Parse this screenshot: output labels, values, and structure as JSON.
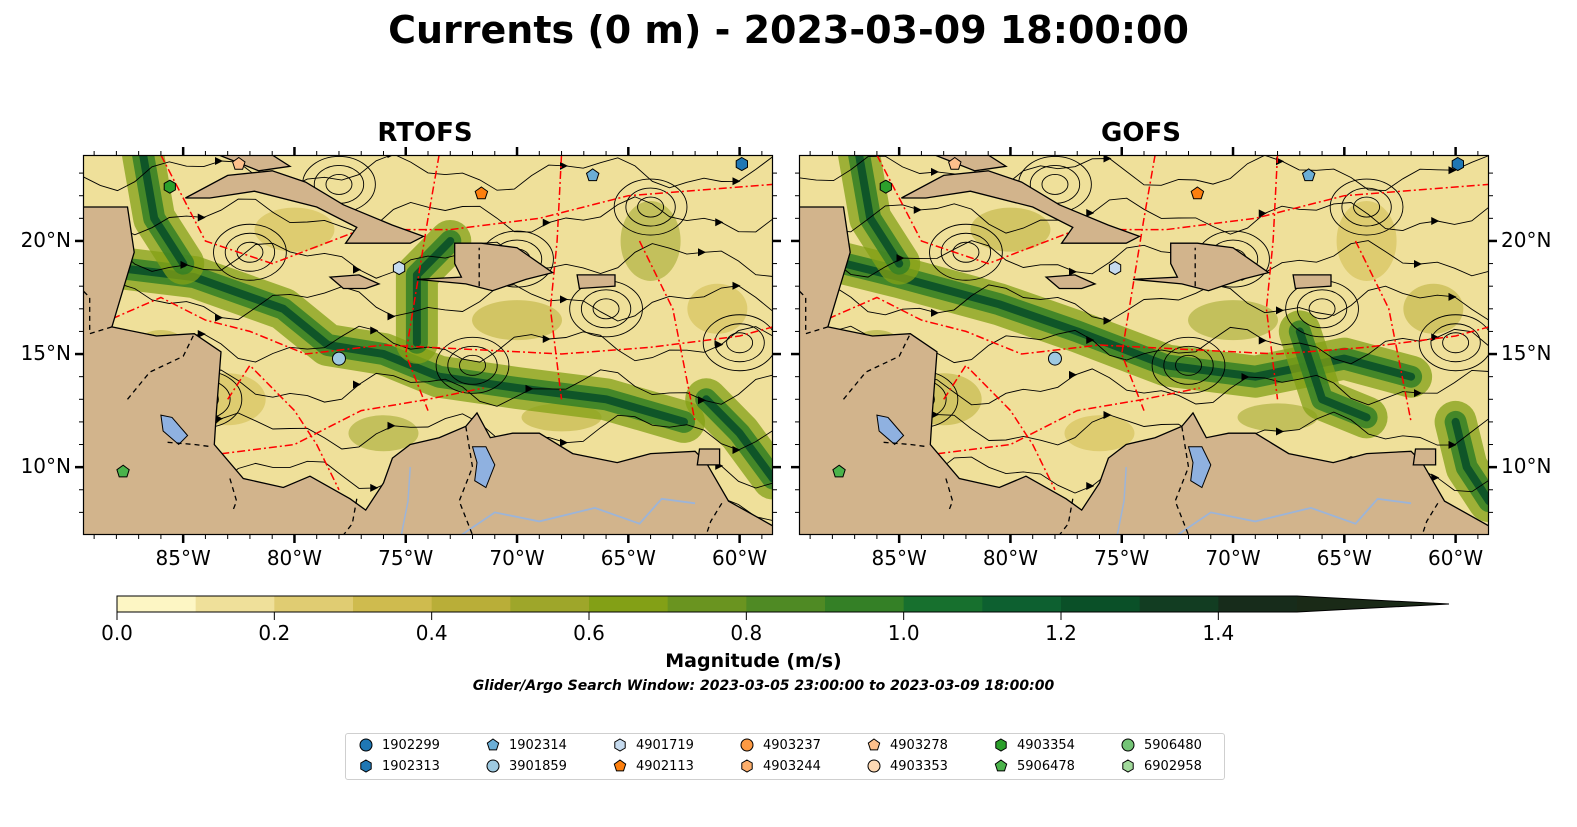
{
  "title": "Currents (0 m) - 2023-03-09 18:00:00",
  "panels": [
    {
      "title": "RTOFS",
      "x_ticks": [
        "85°W",
        "80°W",
        "75°W",
        "70°W",
        "65°W",
        "60°W"
      ],
      "y_ticks": [
        "20°N",
        "15°N",
        "10°N"
      ]
    },
    {
      "title": "GOFS",
      "x_ticks": [
        "85°W",
        "80°W",
        "75°W",
        "70°W",
        "65°W",
        "60°W"
      ],
      "y_ticks": [
        "20°N",
        "15°N",
        "10°N"
      ]
    }
  ],
  "map_extent": {
    "lon": [
      -89.5,
      -58.5
    ],
    "lat": [
      7.0,
      23.8
    ]
  },
  "colorbar": {
    "label": "Magnitude (m/s)",
    "ticks": [
      "0.0",
      "0.2",
      "0.4",
      "0.6",
      "0.8",
      "1.0",
      "1.2",
      "1.4"
    ],
    "range": [
      0,
      1.5
    ],
    "extend": "max",
    "colors": [
      "#fdf6c4",
      "#efe09a",
      "#e0cc72",
      "#cfbb4e",
      "#b9ae38",
      "#9ea62a",
      "#83a016",
      "#6a9420",
      "#4f8a24",
      "#348026",
      "#17702e",
      "#0d6030",
      "#0a5028",
      "#123d22",
      "#172c1b"
    ]
  },
  "search_window": "Glider/Argo Search Window: 2023-03-05 23:00:00 to 2023-03-09 18:00:00",
  "colors": {
    "land": "#d2b48c",
    "lake": "#8fb1e0",
    "eez": "#ff0000",
    "border": "#000000"
  },
  "floats": [
    {
      "id": "1902299",
      "marker": "circle",
      "color": "#1f77b4"
    },
    {
      "id": "1902313",
      "marker": "hexagon",
      "color": "#1f77b4"
    },
    {
      "id": "1902314",
      "marker": "pentagon",
      "color": "#6baed6"
    },
    {
      "id": "3901859",
      "marker": "circle",
      "color": "#9ecae1"
    },
    {
      "id": "4901719",
      "marker": "hexagon",
      "color": "#c6dbef"
    },
    {
      "id": "4902113",
      "marker": "pentagon",
      "color": "#fd7f0e"
    },
    {
      "id": "4903237",
      "marker": "circle",
      "color": "#fd9a43"
    },
    {
      "id": "4903244",
      "marker": "hexagon",
      "color": "#fdae6b"
    },
    {
      "id": "4903278",
      "marker": "pentagon",
      "color": "#fdc08c"
    },
    {
      "id": "4903353",
      "marker": "circle",
      "color": "#fdd9b4"
    },
    {
      "id": "4903354",
      "marker": "hexagon",
      "color": "#2ca02c"
    },
    {
      "id": "5906478",
      "marker": "pentagon",
      "color": "#4bb34b"
    },
    {
      "id": "5906480",
      "marker": "circle",
      "color": "#74c476"
    },
    {
      "id": "6902958",
      "marker": "hexagon",
      "color": "#a1d99b"
    }
  ],
  "float_positions": [
    {
      "id": "1902313",
      "lon": -59.9,
      "lat": 23.4
    },
    {
      "id": "1902314",
      "lon": -66.6,
      "lat": 22.9
    },
    {
      "id": "4902113",
      "lon": -71.6,
      "lat": 22.1
    },
    {
      "id": "4903278",
      "lon": -82.5,
      "lat": 23.4
    },
    {
      "id": "4903354",
      "lon": -85.6,
      "lat": 22.4
    },
    {
      "id": "4901719",
      "lon": -75.3,
      "lat": 18.8
    },
    {
      "id": "3901859",
      "lon": -78.0,
      "lat": 14.8
    },
    {
      "id": "5906478",
      "lon": -87.7,
      "lat": 9.8
    }
  ]
}
